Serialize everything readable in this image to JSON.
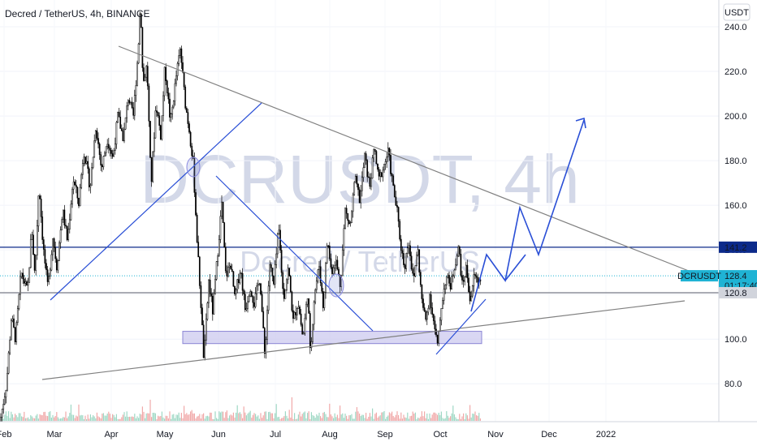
{
  "legend": {
    "title": "Decred / TetherUS, 4h, BINANCE"
  },
  "currency_button": "USDT",
  "watermark": {
    "symbol": "DCRUSDT, 4h",
    "name": "Decred / TetherUS"
  },
  "colors": {
    "candle": "#000000",
    "trendline_blue": "#2a4fd6",
    "resistance_line": "#0c2a8a",
    "trendline_gray": "#808080",
    "support_zone": "#c9c6ee",
    "price_tag": "#1fb3d4"
  },
  "chart_data": {
    "type": "candlestick",
    "ylim": [
      63,
      252
    ],
    "y_ticks": [
      80.0,
      100.0,
      120.0,
      140.0,
      160.0,
      180.0,
      200.0,
      220.0,
      240.0
    ],
    "y_tick_labels": [
      "80.0",
      "100.0",
      "120.0",
      "140.0",
      "160.0",
      "180.0",
      "200.0",
      "220.0",
      "240.0"
    ],
    "x_tick_labels": [
      "Feb",
      "Mar",
      "Apr",
      "May",
      "Jun",
      "Jul",
      "Aug",
      "Sep",
      "Oct",
      "Nov",
      "Dec",
      "2022"
    ],
    "price_path": [
      [
        0,
        63
      ],
      [
        8,
        80
      ],
      [
        14,
        110
      ],
      [
        19,
        100
      ],
      [
        26,
        130
      ],
      [
        34,
        121
      ],
      [
        39,
        150
      ],
      [
        43,
        128
      ],
      [
        48,
        170
      ],
      [
        53,
        142
      ],
      [
        59,
        122
      ],
      [
        65,
        146
      ],
      [
        70,
        132
      ],
      [
        77,
        158
      ],
      [
        83,
        144
      ],
      [
        90,
        172
      ],
      [
        97,
        161
      ],
      [
        103,
        185
      ],
      [
        111,
        168
      ],
      [
        118,
        196
      ],
      [
        125,
        176
      ],
      [
        132,
        190
      ],
      [
        139,
        181
      ],
      [
        145,
        200
      ],
      [
        152,
        190
      ],
      [
        158,
        209
      ],
      [
        164,
        199
      ],
      [
        170,
        229
      ],
      [
        173,
        252
      ],
      [
        176,
        214
      ],
      [
        181,
        223
      ],
      [
        186,
        168
      ],
      [
        192,
        206
      ],
      [
        198,
        191
      ],
      [
        203,
        222
      ],
      [
        210,
        197
      ],
      [
        217,
        218
      ],
      [
        222,
        230
      ],
      [
        228,
        206
      ],
      [
        233,
        194
      ],
      [
        238,
        178
      ],
      [
        243,
        142
      ],
      [
        248,
        112
      ],
      [
        251,
        90
      ],
      [
        257,
        126
      ],
      [
        262,
        112
      ],
      [
        268,
        139
      ],
      [
        273,
        161
      ],
      [
        278,
        128
      ],
      [
        284,
        134
      ],
      [
        289,
        118
      ],
      [
        296,
        132
      ],
      [
        302,
        113
      ],
      [
        308,
        124
      ],
      [
        313,
        116
      ],
      [
        320,
        128
      ],
      [
        326,
        92
      ],
      [
        332,
        134
      ],
      [
        337,
        124
      ],
      [
        343,
        150
      ],
      [
        349,
        118
      ],
      [
        355,
        132
      ],
      [
        361,
        108
      ],
      [
        367,
        117
      ],
      [
        373,
        100
      ],
      [
        379,
        122
      ],
      [
        382,
        92
      ],
      [
        387,
        120
      ],
      [
        393,
        133
      ],
      [
        398,
        114
      ],
      [
        403,
        145
      ],
      [
        408,
        130
      ],
      [
        413,
        136
      ],
      [
        419,
        124
      ],
      [
        425,
        158
      ],
      [
        431,
        150
      ],
      [
        437,
        172
      ],
      [
        443,
        162
      ],
      [
        449,
        182
      ],
      [
        455,
        168
      ],
      [
        461,
        186
      ],
      [
        466,
        171
      ],
      [
        472,
        177
      ],
      [
        478,
        184
      ],
      [
        484,
        168
      ],
      [
        489,
        157
      ],
      [
        493,
        143
      ],
      [
        498,
        132
      ],
      [
        503,
        145
      ],
      [
        509,
        125
      ],
      [
        514,
        142
      ],
      [
        519,
        118
      ],
      [
        524,
        108
      ],
      [
        529,
        120
      ],
      [
        535,
        105
      ],
      [
        539,
        96
      ],
      [
        543,
        114
      ],
      [
        549,
        128
      ],
      [
        555,
        124
      ],
      [
        560,
        134
      ],
      [
        565,
        141
      ],
      [
        569,
        124
      ],
      [
        574,
        132
      ],
      [
        579,
        117
      ],
      [
        584,
        129
      ],
      [
        588,
        126
      ],
      [
        591,
        128
      ]
    ],
    "horizontal_levels": [
      {
        "price": 141.2,
        "style": "solid",
        "color": "#0c2a8a"
      },
      {
        "price": 128.4,
        "style": "dotted",
        "color": "#1fb3d4"
      },
      {
        "price": 120.8,
        "style": "solid",
        "color": "#787b86"
      }
    ],
    "price_tags": [
      {
        "price": 141.2,
        "text": "141.2",
        "bg": "#0c2a8a",
        "fg": "#ffffff"
      },
      {
        "price": 128.4,
        "text": "128.4",
        "bg": "#1fb3d4",
        "fg": "#ffffff"
      },
      {
        "price": 120.8,
        "text": "120.8",
        "bg": "#d1d4dc",
        "fg": "#131722"
      }
    ],
    "countdown": "01:17:40",
    "symbol_tag": "DCRUSDT"
  }
}
